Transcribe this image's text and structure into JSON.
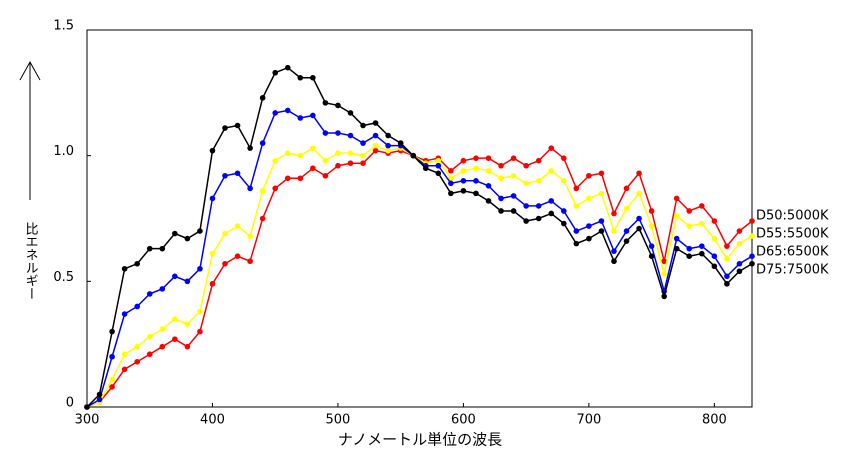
{
  "chart_data": {
    "type": "line",
    "y_label": "比エネルギー",
    "x_label": "ナノメートル単位の波長",
    "x": [
      300,
      310,
      320,
      330,
      340,
      350,
      360,
      370,
      380,
      390,
      400,
      410,
      420,
      430,
      440,
      450,
      460,
      470,
      480,
      490,
      500,
      510,
      520,
      530,
      540,
      550,
      560,
      570,
      580,
      590,
      600,
      610,
      620,
      630,
      640,
      650,
      660,
      670,
      680,
      690,
      700,
      710,
      720,
      730,
      740,
      750,
      760,
      770,
      780,
      790,
      800,
      810,
      820,
      830
    ],
    "xlim": [
      300,
      830
    ],
    "xticks": [
      300,
      400,
      500,
      600,
      700,
      800
    ],
    "ylim": [
      0,
      1.5
    ],
    "yticks": [
      0,
      0.5,
      {
        "value": 1.0,
        "label": "1.0"
      },
      1.5
    ],
    "grid": false,
    "series": [
      {
        "name": "D50:5000K",
        "color": "#ff0000",
        "values": [
          0.0,
          0.02,
          0.08,
          0.15,
          0.18,
          0.21,
          0.24,
          0.27,
          0.24,
          0.3,
          0.49,
          0.57,
          0.6,
          0.58,
          0.75,
          0.87,
          0.91,
          0.91,
          0.95,
          0.92,
          0.96,
          0.97,
          0.97,
          1.02,
          1.01,
          1.02,
          1.0,
          0.98,
          0.99,
          0.94,
          0.98,
          0.99,
          0.99,
          0.96,
          0.99,
          0.96,
          0.98,
          1.03,
          0.99,
          0.87,
          0.92,
          0.93,
          0.77,
          0.87,
          0.93,
          0.78,
          0.58,
          0.83,
          0.78,
          0.8,
          0.74,
          0.64,
          0.7,
          0.74
        ]
      },
      {
        "name": "D55:5500K",
        "color": "#ffff00",
        "values": [
          0.0,
          0.02,
          0.11,
          0.21,
          0.24,
          0.28,
          0.31,
          0.35,
          0.33,
          0.38,
          0.61,
          0.69,
          0.72,
          0.68,
          0.86,
          0.98,
          1.01,
          1.0,
          1.03,
          0.98,
          1.01,
          1.01,
          1.0,
          1.04,
          1.02,
          1.03,
          1.0,
          0.97,
          0.98,
          0.91,
          0.94,
          0.95,
          0.94,
          0.91,
          0.92,
          0.89,
          0.9,
          0.94,
          0.9,
          0.8,
          0.83,
          0.85,
          0.7,
          0.79,
          0.85,
          0.72,
          0.53,
          0.76,
          0.72,
          0.73,
          0.67,
          0.59,
          0.65,
          0.68
        ]
      },
      {
        "name": "D65:6500K",
        "color": "#0000ff",
        "values": [
          0.0,
          0.03,
          0.2,
          0.37,
          0.4,
          0.45,
          0.47,
          0.52,
          0.5,
          0.55,
          0.83,
          0.92,
          0.93,
          0.87,
          1.05,
          1.17,
          1.18,
          1.15,
          1.16,
          1.09,
          1.09,
          1.08,
          1.05,
          1.08,
          1.04,
          1.04,
          1.0,
          0.96,
          0.96,
          0.89,
          0.9,
          0.9,
          0.88,
          0.83,
          0.84,
          0.8,
          0.8,
          0.82,
          0.78,
          0.7,
          0.72,
          0.74,
          0.62,
          0.7,
          0.75,
          0.64,
          0.46,
          0.67,
          0.63,
          0.64,
          0.6,
          0.52,
          0.57,
          0.6
        ]
      },
      {
        "name": "D75:7500K",
        "color": "#000000",
        "values": [
          0.0,
          0.05,
          0.3,
          0.55,
          0.57,
          0.63,
          0.63,
          0.69,
          0.67,
          0.7,
          1.02,
          1.11,
          1.12,
          1.03,
          1.23,
          1.33,
          1.35,
          1.31,
          1.31,
          1.21,
          1.2,
          1.17,
          1.12,
          1.13,
          1.08,
          1.05,
          1.0,
          0.95,
          0.93,
          0.85,
          0.86,
          0.85,
          0.82,
          0.78,
          0.78,
          0.74,
          0.75,
          0.77,
          0.73,
          0.65,
          0.67,
          0.7,
          0.58,
          0.66,
          0.71,
          0.6,
          0.44,
          0.63,
          0.6,
          0.61,
          0.56,
          0.49,
          0.54,
          0.57
        ]
      }
    ]
  }
}
